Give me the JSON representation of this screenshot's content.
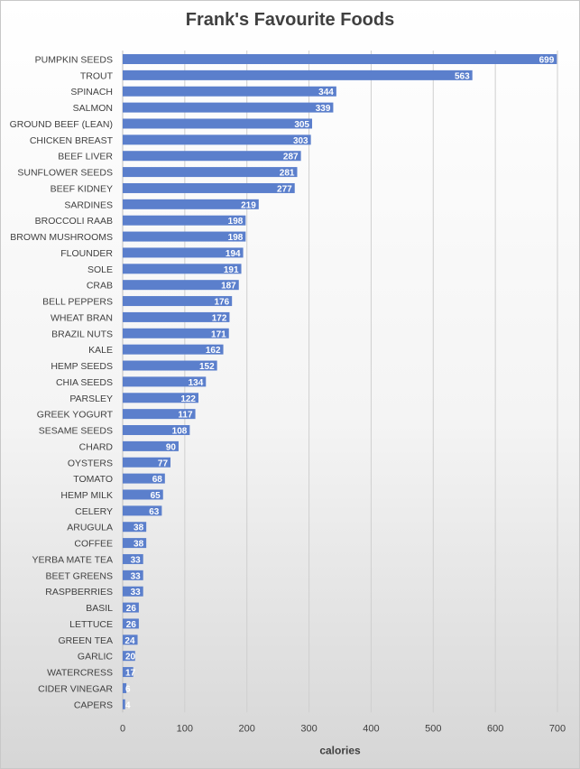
{
  "chart_data": {
    "type": "bar",
    "orientation": "horizontal",
    "title": "Frank's Favourite Foods",
    "xlabel": "calories",
    "ylabel": "",
    "xlim": [
      0,
      700
    ],
    "xticks": [
      0,
      100,
      200,
      300,
      400,
      500,
      600,
      700
    ],
    "grid": "vertical",
    "legend": "none",
    "bar_color": "#5b7fcc",
    "data_labels": "inside-end",
    "categories": [
      "PUMPKIN SEEDS",
      "TROUT",
      "SPINACH",
      "SALMON",
      "GROUND BEEF (LEAN)",
      "CHICKEN BREAST",
      "BEEF LIVER",
      "SUNFLOWER SEEDS",
      "BEEF KIDNEY",
      "SARDINES",
      "BROCCOLI RAAB",
      "BROWN  MUSHROOMS",
      "FLOUNDER",
      "SOLE",
      "CRAB",
      "BELL PEPPERS",
      "WHEAT BRAN",
      "BRAZIL NUTS",
      "KALE",
      "HEMP SEEDS",
      "CHIA SEEDS",
      "PARSLEY",
      "GREEK YOGURT",
      "SESAME SEEDS",
      "CHARD",
      "OYSTERS",
      "TOMATO",
      "HEMP MILK",
      "CELERY",
      "ARUGULA",
      "COFFEE",
      "YERBA MATE TEA",
      "BEET GREENS",
      "RASPBERRIES",
      "BASIL",
      "LETTUCE",
      "GREEN TEA",
      "GARLIC",
      "WATERCRESS",
      "CIDER VINEGAR",
      "CAPERS"
    ],
    "values": [
      699,
      563,
      344,
      339,
      305,
      303,
      287,
      281,
      277,
      219,
      198,
      198,
      194,
      191,
      187,
      176,
      172,
      171,
      162,
      152,
      134,
      122,
      117,
      108,
      90,
      77,
      68,
      65,
      63,
      38,
      38,
      33,
      33,
      33,
      26,
      26,
      24,
      20,
      17,
      6,
      4
    ]
  }
}
